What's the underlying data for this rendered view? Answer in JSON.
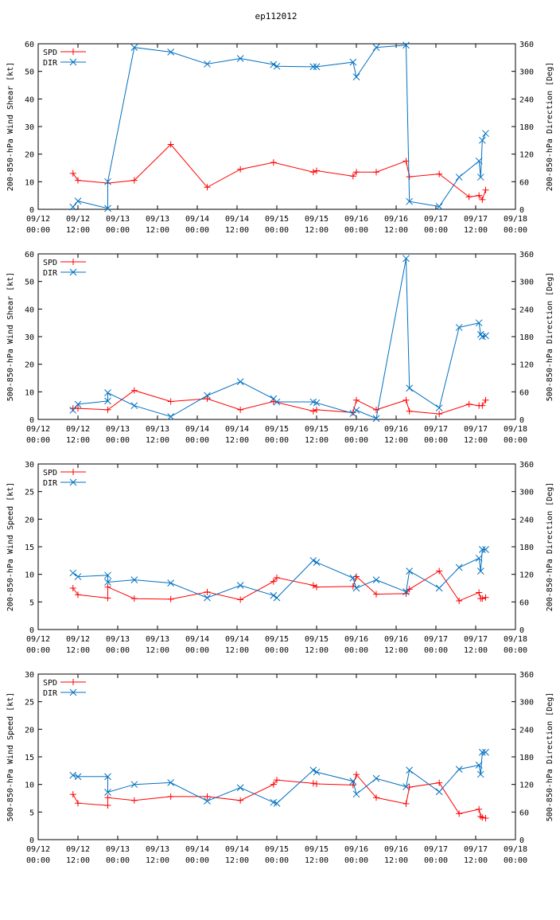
{
  "title": "ep112012",
  "colors": {
    "spd": "#ff0000",
    "dir": "#0070c0",
    "axes": "#000000",
    "title": "#0000ff",
    "background": "#ffffff"
  },
  "chart_data": [
    {
      "type": "line",
      "ylabel": "200-850-hPa Wind Shear [kt]",
      "y2label": "200-850-hPa Direction [Deg]",
      "ylim": [
        0,
        60
      ],
      "y2lim": [
        0,
        360
      ],
      "yticks": [
        0,
        10,
        20,
        30,
        40,
        50,
        60
      ],
      "y2ticks": [
        0,
        60,
        120,
        180,
        240,
        300,
        360
      ],
      "xlim": [
        0,
        144
      ],
      "xticks": [
        0,
        12,
        24,
        36,
        48,
        60,
        72,
        84,
        96,
        108,
        120,
        132,
        144
      ],
      "xticklabels": [
        [
          "09/12",
          "00:00"
        ],
        [
          "09/12",
          "12:00"
        ],
        [
          "09/13",
          "00:00"
        ],
        [
          "09/13",
          "12:00"
        ],
        [
          "09/14",
          "00:00"
        ],
        [
          "09/14",
          "12:00"
        ],
        [
          "09/15",
          "00:00"
        ],
        [
          "09/15",
          "12:00"
        ],
        [
          "09/16",
          "00:00"
        ],
        [
          "09/16",
          "12:00"
        ],
        [
          "09/17",
          "00:00"
        ],
        [
          "09/17",
          "12:00"
        ],
        [
          "09/18",
          "00:00"
        ]
      ],
      "legend": [
        "SPD",
        "DIR"
      ],
      "series": [
        {
          "name": "SPD",
          "axis": "left",
          "marker": "plus",
          "x": [
            10.5,
            12,
            21,
            29,
            40,
            51,
            61,
            71,
            83,
            84,
            95,
            96,
            102,
            111,
            112,
            121,
            130,
            133,
            134,
            135
          ],
          "y": [
            13,
            10.5,
            9.5,
            10.5,
            23.5,
            8,
            14.5,
            17,
            13.5,
            14,
            12,
            13.5,
            13.5,
            17.5,
            11.8,
            12.8,
            4.5,
            5,
            3.5,
            7
          ]
        },
        {
          "name": "DIR",
          "axis": "right",
          "marker": "x",
          "x": [
            10.5,
            12,
            21,
            21,
            29,
            40,
            51,
            61,
            71,
            72,
            83,
            84,
            95,
            96,
            102,
            111,
            112,
            121,
            127,
            133,
            133.5,
            134,
            135
          ],
          "y": [
            5,
            18,
            2,
            60,
            352,
            342,
            316,
            328,
            315,
            311,
            310,
            310,
            320,
            288,
            352,
            357,
            17,
            6,
            70,
            105,
            70,
            150,
            165
          ]
        }
      ]
    },
    {
      "type": "line",
      "ylabel": "500-850-hPa Wind Shear [kt]",
      "y2label": "500-850-hPa Direction [Deg]",
      "ylim": [
        0,
        60
      ],
      "y2lim": [
        0,
        360
      ],
      "yticks": [
        0,
        10,
        20,
        30,
        40,
        50,
        60
      ],
      "y2ticks": [
        0,
        60,
        120,
        180,
        240,
        300,
        360
      ],
      "xlim": [
        0,
        144
      ],
      "xticks": [
        0,
        12,
        24,
        36,
        48,
        60,
        72,
        84,
        96,
        108,
        120,
        132,
        144
      ],
      "xticklabels": [
        [
          "09/12",
          "00:00"
        ],
        [
          "09/12",
          "12:00"
        ],
        [
          "09/13",
          "00:00"
        ],
        [
          "09/13",
          "12:00"
        ],
        [
          "09/14",
          "00:00"
        ],
        [
          "09/14",
          "12:00"
        ],
        [
          "09/15",
          "00:00"
        ],
        [
          "09/15",
          "12:00"
        ],
        [
          "09/16",
          "00:00"
        ],
        [
          "09/16",
          "12:00"
        ],
        [
          "09/17",
          "00:00"
        ],
        [
          "09/17",
          "12:00"
        ],
        [
          "09/18",
          "00:00"
        ]
      ],
      "legend": [
        "SPD",
        "DIR"
      ],
      "series": [
        {
          "name": "SPD",
          "axis": "left",
          "marker": "plus",
          "x": [
            10.5,
            12,
            21,
            29,
            40,
            51,
            61,
            71,
            83,
            84,
            95,
            96,
            102,
            111,
            112,
            121,
            130,
            133,
            134,
            135
          ],
          "y": [
            4,
            4,
            3.5,
            10.5,
            6.5,
            7.5,
            3.5,
            6.5,
            3,
            3.5,
            2.5,
            7,
            3.5,
            7,
            3,
            2,
            5.5,
            5,
            5,
            7
          ]
        },
        {
          "name": "DIR",
          "axis": "right",
          "marker": "x",
          "x": [
            10.5,
            12,
            21,
            21,
            29,
            40,
            51,
            61,
            71,
            72,
            83,
            84,
            95,
            96,
            102,
            111,
            112,
            121,
            127,
            133,
            133.5,
            134,
            135
          ],
          "y": [
            20,
            33,
            40,
            58,
            30,
            6,
            52,
            82,
            45,
            38,
            38,
            36,
            13,
            20,
            2,
            350,
            68,
            25,
            200,
            210,
            185,
            180,
            182
          ]
        }
      ]
    },
    {
      "type": "line",
      "ylabel": "200-850-hPa Wind Speed [kt]",
      "y2label": "200-850-hPa Direction [Deg]",
      "ylim": [
        0,
        30
      ],
      "y2lim": [
        0,
        360
      ],
      "yticks": [
        0,
        5,
        10,
        15,
        20,
        25,
        30
      ],
      "y2ticks": [
        0,
        60,
        120,
        180,
        240,
        300,
        360
      ],
      "xlim": [
        0,
        144
      ],
      "xticks": [
        0,
        12,
        24,
        36,
        48,
        60,
        72,
        84,
        96,
        108,
        120,
        132,
        144
      ],
      "xticklabels": [
        [
          "09/12",
          "00:00"
        ],
        [
          "09/12",
          "12:00"
        ],
        [
          "09/13",
          "00:00"
        ],
        [
          "09/13",
          "12:00"
        ],
        [
          "09/14",
          "00:00"
        ],
        [
          "09/14",
          "12:00"
        ],
        [
          "09/15",
          "00:00"
        ],
        [
          "09/15",
          "12:00"
        ],
        [
          "09/16",
          "00:00"
        ],
        [
          "09/16",
          "12:00"
        ],
        [
          "09/17",
          "00:00"
        ],
        [
          "09/17",
          "12:00"
        ],
        [
          "09/18",
          "00:00"
        ]
      ],
      "legend": [
        "SPD",
        "DIR"
      ],
      "series": [
        {
          "name": "SPD",
          "axis": "left",
          "marker": "plus",
          "x": [
            10.5,
            12,
            21,
            21,
            29,
            40,
            51,
            61,
            71,
            72,
            83,
            84,
            95,
            96,
            102,
            111,
            112,
            121,
            127,
            133,
            133.5,
            134,
            135
          ],
          "y": [
            7.5,
            6.3,
            5.7,
            7.7,
            5.6,
            5.5,
            6.8,
            5.4,
            8.7,
            9.4,
            8,
            7.7,
            7.8,
            9.6,
            6.4,
            6.5,
            7.3,
            10.6,
            5.2,
            6.7,
            5.6,
            5.6,
            5.8
          ]
        },
        {
          "name": "DIR",
          "axis": "right",
          "marker": "x",
          "x": [
            10.5,
            12,
            21,
            21,
            29,
            40,
            51,
            61,
            71,
            72,
            83,
            84,
            95,
            96,
            102,
            111,
            112,
            121,
            127,
            133,
            133.5,
            134,
            135
          ],
          "y": [
            123,
            115,
            118,
            103,
            108,
            101,
            69,
            96,
            74,
            69,
            150,
            146,
            112,
            90,
            108,
            82,
            127,
            90,
            135,
            155,
            127,
            174,
            174
          ]
        }
      ]
    },
    {
      "type": "line",
      "ylabel": "500-850-hPa Wind Speed [kt]",
      "y2label": "500-850-hPa Direction [Deg]",
      "ylim": [
        0,
        30
      ],
      "y2lim": [
        0,
        360
      ],
      "yticks": [
        0,
        5,
        10,
        15,
        20,
        25,
        30
      ],
      "y2ticks": [
        0,
        60,
        120,
        180,
        240,
        300,
        360
      ],
      "xlim": [
        0,
        144
      ],
      "xticks": [
        0,
        12,
        24,
        36,
        48,
        60,
        72,
        84,
        96,
        108,
        120,
        132,
        144
      ],
      "xticklabels": [
        [
          "09/12",
          "00:00"
        ],
        [
          "09/12",
          "12:00"
        ],
        [
          "09/13",
          "00:00"
        ],
        [
          "09/13",
          "12:00"
        ],
        [
          "09/14",
          "00:00"
        ],
        [
          "09/14",
          "12:00"
        ],
        [
          "09/15",
          "00:00"
        ],
        [
          "09/15",
          "12:00"
        ],
        [
          "09/16",
          "00:00"
        ],
        [
          "09/16",
          "12:00"
        ],
        [
          "09/17",
          "00:00"
        ],
        [
          "09/17",
          "12:00"
        ],
        [
          "09/18",
          "00:00"
        ]
      ],
      "legend": [
        "SPD",
        "DIR"
      ],
      "series": [
        {
          "name": "SPD",
          "axis": "left",
          "marker": "plus",
          "x": [
            10.5,
            12,
            21,
            21,
            29,
            40,
            51,
            61,
            71,
            72,
            83,
            84,
            95,
            96,
            102,
            111,
            112,
            121,
            127,
            133,
            133.5,
            134,
            135
          ],
          "y": [
            8.2,
            6.6,
            6.2,
            7.6,
            7.1,
            7.8,
            7.8,
            7.1,
            10,
            10.8,
            10.2,
            10.1,
            9.9,
            11.8,
            7.6,
            6.5,
            9.5,
            10.3,
            4.7,
            5.5,
            4.2,
            4,
            3.9
          ]
        },
        {
          "name": "DIR",
          "axis": "right",
          "marker": "x",
          "x": [
            10.5,
            12,
            21,
            21,
            29,
            40,
            51,
            61,
            71,
            72,
            83,
            84,
            95,
            96,
            102,
            111,
            112,
            121,
            127,
            133,
            133.5,
            134,
            135
          ],
          "y": [
            140,
            137,
            137,
            103,
            120,
            124,
            84,
            113,
            81,
            79,
            151,
            147,
            127,
            99,
            133,
            115,
            151,
            104,
            153,
            162,
            142,
            190,
            190
          ]
        }
      ]
    }
  ]
}
